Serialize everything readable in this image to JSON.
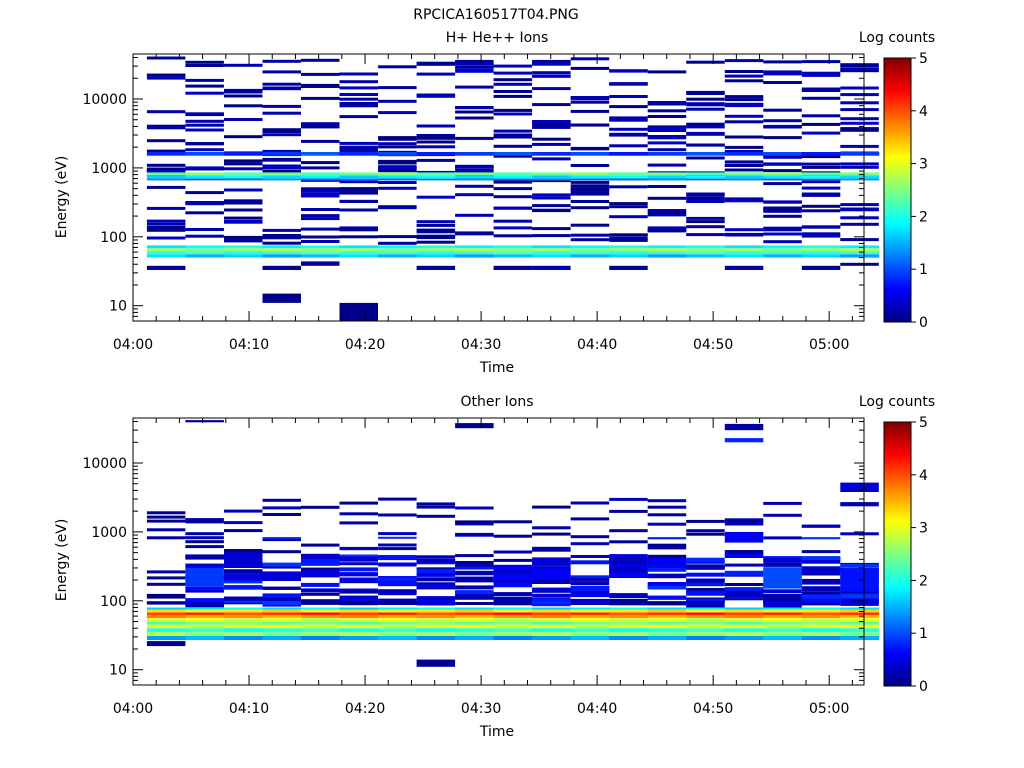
{
  "figure_title": "RPCICA160517T04.PNG",
  "colorscale": [
    "#000080",
    "#0000ff",
    "#0080ff",
    "#00ffff",
    "#80ff80",
    "#ffff00",
    "#ff8000",
    "#ff0000",
    "#800000"
  ],
  "chart_data": [
    {
      "type": "heatmap",
      "title": "H+ He++ Ions",
      "xlabel": "Time",
      "ylabel": "Energy (eV)",
      "x_ticks": [
        "04:00",
        "04:10",
        "04:20",
        "04:30",
        "04:40",
        "04:50",
        "05:00"
      ],
      "x_range_minutes": [
        0,
        63
      ],
      "y_ticks": [
        "10",
        "100",
        "1000",
        "10000"
      ],
      "y_scale": "log",
      "y_range": [
        6,
        45000
      ],
      "colorbar": {
        "label": "Log counts",
        "ticks": [
          "0",
          "1",
          "2",
          "3",
          "4",
          "5"
        ],
        "range": [
          0,
          5
        ]
      },
      "time_bins": 19,
      "steady_bands": [
        {
          "e_low": 68,
          "e_high": 75,
          "value": 1.9
        },
        {
          "e_low": 62,
          "e_high": 68,
          "value": 2.6
        },
        {
          "e_low": 56,
          "e_high": 62,
          "value": 2.2
        },
        {
          "e_low": 50,
          "e_high": 56,
          "value": 1.6
        },
        {
          "e_low": 780,
          "e_high": 860,
          "value": 2.4
        },
        {
          "e_low": 700,
          "e_high": 780,
          "value": 1.8
        },
        {
          "e_low": 660,
          "e_high": 700,
          "value": 1.2
        },
        {
          "e_low": 1500,
          "e_high": 1700,
          "value": 0.9
        }
      ],
      "sparse_cells": [
        {
          "bin": 3,
          "e_low": 11,
          "e_high": 15,
          "value": 0.05
        },
        {
          "bin": 5,
          "e_low": 6,
          "e_high": 11,
          "value": 0.05
        },
        {
          "bin": 0,
          "e_low": 33,
          "e_high": 38,
          "value": 0.1
        },
        {
          "bin": 3,
          "e_low": 33,
          "e_high": 38,
          "value": 0.1
        },
        {
          "bin": 4,
          "e_low": 38,
          "e_high": 44,
          "value": 0.1
        },
        {
          "bin": 7,
          "e_low": 33,
          "e_high": 38,
          "value": 0.1
        },
        {
          "bin": 9,
          "e_low": 33,
          "e_high": 38,
          "value": 0.1
        },
        {
          "bin": 10,
          "e_low": 33,
          "e_high": 38,
          "value": 0.2
        },
        {
          "bin": 12,
          "e_low": 33,
          "e_high": 38,
          "value": 0.1
        },
        {
          "bin": 15,
          "e_low": 33,
          "e_high": 38,
          "value": 0.15
        },
        {
          "bin": 17,
          "e_low": 33,
          "e_high": 38,
          "value": 0.1
        },
        {
          "bin": 18,
          "e_low": 38,
          "e_high": 42,
          "value": 0.05
        },
        {
          "bin": 3,
          "e_low": 92,
          "e_high": 110,
          "value": 0.1
        },
        {
          "bin": 13,
          "e_low": 2600,
          "e_high": 3000,
          "value": 0.3
        },
        {
          "bin": 8,
          "e_low": 24000,
          "e_high": 28000,
          "value": 0.4
        },
        {
          "bin": 16,
          "e_low": 22000,
          "e_high": 26000,
          "value": 0.3
        },
        {
          "bin": 2,
          "e_low": 12000,
          "e_high": 14000,
          "value": 0.2
        },
        {
          "bin": 5,
          "e_low": 1700,
          "e_high": 2100,
          "value": 0.2
        },
        {
          "bin": 14,
          "e_low": 380,
          "e_high": 440,
          "value": 0.2
        },
        {
          "bin": 17,
          "e_low": 380,
          "e_high": 440,
          "value": 0.2
        },
        {
          "bin": 16,
          "e_low": 120,
          "e_high": 140,
          "value": 0.2
        },
        {
          "bin": 4,
          "e_low": 4000,
          "e_high": 4600,
          "value": 0.2
        },
        {
          "bin": 10,
          "e_low": 4000,
          "e_high": 4600,
          "value": 0.2
        }
      ]
    },
    {
      "type": "heatmap",
      "title": "Other Ions",
      "xlabel": "Time",
      "ylabel": "Energy (eV)",
      "x_ticks": [
        "04:00",
        "04:10",
        "04:20",
        "04:30",
        "04:40",
        "04:50",
        "05:00"
      ],
      "x_range_minutes": [
        0,
        63
      ],
      "y_ticks": [
        "10",
        "100",
        "1000",
        "10000"
      ],
      "y_scale": "log",
      "y_range": [
        6,
        45000
      ],
      "colorbar": {
        "label": "Log counts",
        "ticks": [
          "0",
          "1",
          "2",
          "3",
          "4",
          "5"
        ],
        "range": [
          0,
          5
        ]
      },
      "time_bins": 19,
      "steady_bands": [
        {
          "e_low": 74,
          "e_high": 80,
          "value": 1.8
        },
        {
          "e_low": 68,
          "e_high": 74,
          "value": 3.2
        },
        {
          "e_low": 62,
          "e_high": 68,
          "value": 4.1
        },
        {
          "e_low": 56,
          "e_high": 62,
          "value": 3.6
        },
        {
          "e_low": 50,
          "e_high": 56,
          "value": 2.9
        },
        {
          "e_low": 45,
          "e_high": 50,
          "value": 2.4
        },
        {
          "e_low": 40,
          "e_high": 45,
          "value": 3.0
        },
        {
          "e_low": 35,
          "e_high": 40,
          "value": 2.1
        },
        {
          "e_low": 31,
          "e_high": 35,
          "value": 2.6
        },
        {
          "e_low": 27,
          "e_high": 31,
          "value": 1.4
        }
      ],
      "sparse_cells": [
        {
          "bin": 0,
          "e_low": 22,
          "e_high": 26,
          "value": 0.1
        },
        {
          "bin": 7,
          "e_low": 11,
          "e_high": 14,
          "value": 0.1
        },
        {
          "bin": 1,
          "e_low": 39000,
          "e_high": 42000,
          "value": 0.1
        },
        {
          "bin": 8,
          "e_low": 32000,
          "e_high": 38000,
          "value": 0.1
        },
        {
          "bin": 15,
          "e_low": 30000,
          "e_high": 37000,
          "value": 0.2
        },
        {
          "bin": 15,
          "e_low": 20000,
          "e_high": 23000,
          "value": 0.8
        },
        {
          "bin": 18,
          "e_low": 3800,
          "e_high": 5200,
          "value": 0.4
        },
        {
          "bin": 1,
          "e_low": 160,
          "e_high": 300,
          "value": 0.9
        },
        {
          "bin": 2,
          "e_low": 300,
          "e_high": 500,
          "value": 0.4
        },
        {
          "bin": 15,
          "e_low": 700,
          "e_high": 1000,
          "value": 0.6
        },
        {
          "bin": 16,
          "e_low": 150,
          "e_high": 300,
          "value": 1.0
        },
        {
          "bin": 18,
          "e_low": 150,
          "e_high": 300,
          "value": 0.7
        },
        {
          "bin": 10,
          "e_low": 200,
          "e_high": 300,
          "value": 0.6
        },
        {
          "bin": 6,
          "e_low": 800,
          "e_high": 850,
          "value": 0.8
        },
        {
          "bin": 17,
          "e_low": 780,
          "e_high": 840,
          "value": 0.9
        },
        {
          "bin": 13,
          "e_low": 780,
          "e_high": 840,
          "value": 0.8
        },
        {
          "bin": 3,
          "e_low": 780,
          "e_high": 840,
          "value": 0.8
        },
        {
          "bin": 14,
          "e_low": 80,
          "e_high": 100,
          "value": 0.3
        },
        {
          "bin": 16,
          "e_low": 80,
          "e_high": 100,
          "value": 0.4
        }
      ]
    }
  ]
}
